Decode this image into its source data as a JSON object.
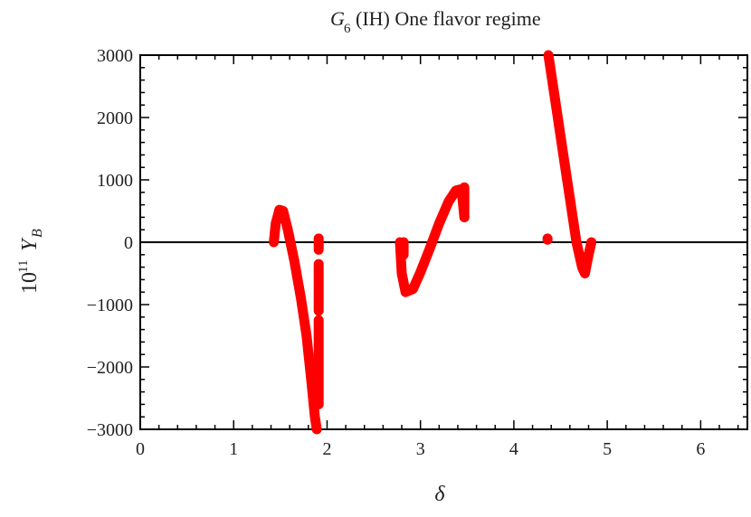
{
  "chart_data": {
    "type": "line",
    "title": {
      "symbol": "G",
      "subscript": "6",
      "rest": "(IH) One flavor regime"
    },
    "xlabel": "δ",
    "ylabel": {
      "prefix": "10",
      "exponent": "11",
      "symbol": "Y",
      "subscript": "B"
    },
    "xlim": [
      0,
      6.5
    ],
    "ylim": [
      -3000,
      3000
    ],
    "x_ticks": [
      "0",
      "1",
      "2",
      "3",
      "4",
      "5",
      "6"
    ],
    "y_ticks": [
      "3000",
      "2000",
      "1000",
      "0",
      "−1000",
      "−2000",
      "−3000"
    ],
    "x_tick_values": [
      0,
      1,
      2,
      3,
      4,
      5,
      6
    ],
    "y_tick_values": [
      3000,
      2000,
      1000,
      0,
      -1000,
      -2000,
      -3000
    ],
    "grid": false,
    "zero_line": true,
    "color": "#ff0000",
    "series": [
      {
        "points": [
          [
            1.43,
            0
          ],
          [
            1.45,
            300
          ],
          [
            1.49,
            520
          ],
          [
            1.53,
            500
          ],
          [
            1.58,
            200
          ],
          [
            1.65,
            -300
          ],
          [
            1.72,
            -900
          ],
          [
            1.78,
            -1500
          ],
          [
            1.83,
            -2200
          ],
          [
            1.87,
            -2800
          ],
          [
            1.89,
            -3000
          ]
        ]
      },
      {
        "points": [
          [
            1.91,
            60
          ],
          [
            1.91,
            -120
          ]
        ]
      },
      {
        "points": [
          [
            1.91,
            -350
          ],
          [
            1.91,
            -1100
          ]
        ]
      },
      {
        "points": [
          [
            1.91,
            -1250
          ],
          [
            1.91,
            -2600
          ]
        ]
      },
      {
        "points": [
          [
            2.78,
            0
          ],
          [
            2.8,
            -500
          ],
          [
            2.84,
            -800
          ],
          [
            2.92,
            -750
          ],
          [
            3.0,
            -480
          ],
          [
            3.1,
            -100
          ],
          [
            3.2,
            300
          ],
          [
            3.3,
            650
          ],
          [
            3.38,
            830
          ],
          [
            3.44,
            850
          ],
          [
            3.47,
            400
          ]
        ]
      },
      {
        "points": [
          [
            2.82,
            0
          ],
          [
            2.82,
            -200
          ]
        ]
      },
      {
        "points": [
          [
            3.47,
            880
          ],
          [
            3.47,
            400
          ]
        ]
      },
      {
        "points": [
          [
            4.37,
            3000
          ],
          [
            4.45,
            2200
          ],
          [
            4.53,
            1400
          ],
          [
            4.6,
            700
          ],
          [
            4.67,
            0
          ],
          [
            4.73,
            -400
          ],
          [
            4.76,
            -500
          ],
          [
            4.8,
            -200
          ],
          [
            4.83,
            0
          ]
        ]
      },
      {
        "points": [
          [
            4.36,
            60
          ],
          [
            4.36,
            40
          ]
        ]
      }
    ]
  }
}
